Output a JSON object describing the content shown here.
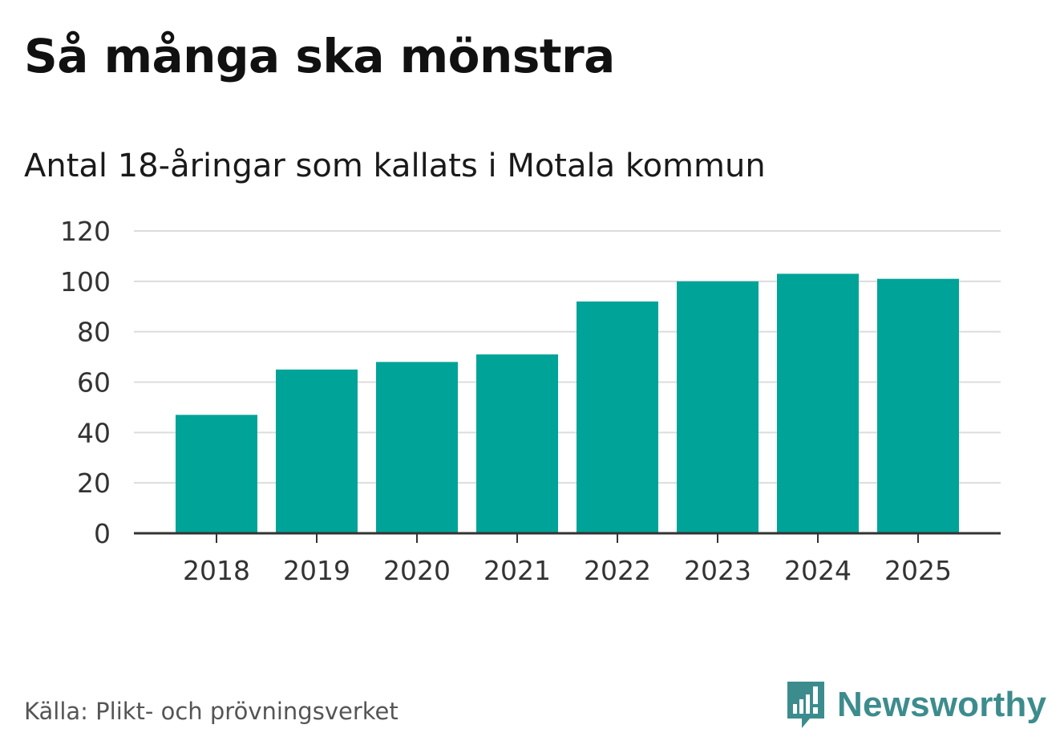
{
  "title": "Så många ska mönstra",
  "subtitle": "Antal 18-åringar som kallats i Motala kommun",
  "source": "Källa: Plikt- och prövningsverket",
  "brand": {
    "name": "Newsworthy",
    "logo_icon": "newsworthy-chart-bubble-icon",
    "color": "#3d8c8d"
  },
  "chart_data": {
    "type": "bar",
    "title": "Så många ska mönstra",
    "subtitle": "Antal 18-åringar som kallats i Motala kommun",
    "xlabel": "",
    "ylabel": "",
    "categories": [
      "2018",
      "2019",
      "2020",
      "2021",
      "2022",
      "2023",
      "2024",
      "2025"
    ],
    "values": [
      47,
      65,
      68,
      71,
      92,
      100,
      103,
      101
    ],
    "ylim": [
      0,
      120
    ],
    "yticks": [
      0,
      20,
      40,
      60,
      80,
      100,
      120
    ],
    "ytick_labels": [
      "0",
      "20",
      "40",
      "60",
      "80",
      "100",
      "120"
    ],
    "grid": true,
    "bar_color": "#00a398",
    "grid_color": "#dcdcdc",
    "axis_color": "#333333"
  }
}
